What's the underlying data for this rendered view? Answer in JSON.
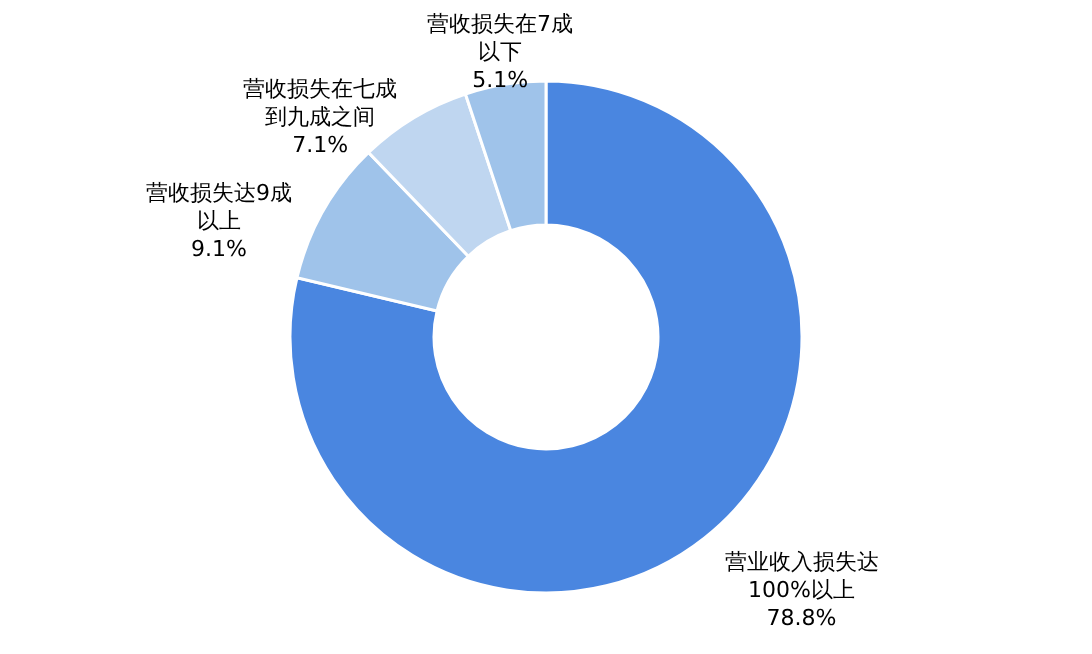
{
  "chart_data": {
    "type": "donut",
    "categories": [
      "营业收入损失达100%以上",
      "营收损失达9成以上",
      "营收损失在七成到九成之间",
      "营收损失在7成以下"
    ],
    "values": [
      78.8,
      9.1,
      7.1,
      5.1
    ],
    "value_labels": [
      "78.8%",
      "9.1%",
      "7.1%",
      "5.1%"
    ],
    "colors": [
      "#4a86e0",
      "#9fc3ea",
      "#bfd6f0",
      "#9fc3ea"
    ]
  }
}
